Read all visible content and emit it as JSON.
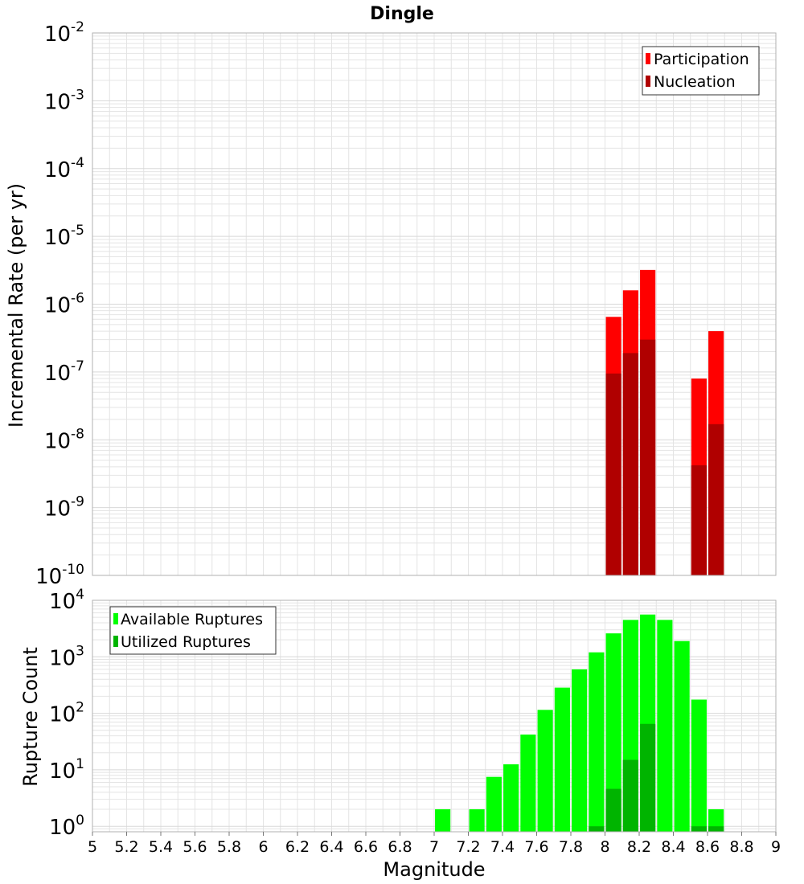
{
  "colors": {
    "participation": "#ff0000",
    "nucleation": "#b00000",
    "available": "#00ff00",
    "utilized": "#00b400",
    "grid": "#e4e4e4",
    "frame": "#b0b0b0"
  },
  "chart_data": [
    {
      "type": "bar",
      "title": "Dingle",
      "xlabel": "",
      "ylabel": "Incremental Rate (per yr)",
      "ylog": true,
      "ylim": [
        1e-10,
        0.01
      ],
      "xlim": [
        5,
        9
      ],
      "grid": true,
      "legend_position": "top-right",
      "ytick_exponents": [
        "-2",
        "-3",
        "-4",
        "-5",
        "-6",
        "-7",
        "-8",
        "-9",
        "-10"
      ],
      "ytick_base": "10",
      "series": [
        {
          "name": "Participation",
          "color": "#ff0000",
          "x": [
            8.05,
            8.15,
            8.25,
            8.55,
            8.65
          ],
          "values": [
            6.5e-07,
            1.6e-06,
            3.2e-06,
            8e-08,
            4e-07
          ]
        },
        {
          "name": "Nucleation",
          "color": "#b00000",
          "x": [
            8.05,
            8.15,
            8.25,
            8.55,
            8.65
          ],
          "values": [
            9.5e-08,
            1.9e-07,
            3e-07,
            4.2e-09,
            1.7e-08
          ]
        }
      ]
    },
    {
      "type": "bar",
      "xlabel": "Magnitude",
      "ylabel": "Rupture Count",
      "ylog": true,
      "ylim": [
        0.8,
        10000
      ],
      "xlim": [
        5,
        9
      ],
      "grid": true,
      "legend_position": "top-left",
      "ytick_exponents": [
        "4",
        "3",
        "2",
        "1",
        "0"
      ],
      "ytick_base": "10",
      "xticks": [
        "5",
        "5.2",
        "5.4",
        "5.6",
        "5.8",
        "6",
        "6.2",
        "6.4",
        "6.6",
        "6.8",
        "7",
        "7.2",
        "7.4",
        "7.6",
        "7.8",
        "8",
        "8.2",
        "8.4",
        "8.6",
        "8.8",
        "9"
      ],
      "series": [
        {
          "name": "Available Ruptures",
          "color": "#00ff00",
          "x": [
            7.05,
            7.25,
            7.35,
            7.45,
            7.55,
            7.65,
            7.75,
            7.85,
            7.95,
            8.05,
            8.15,
            8.25,
            8.35,
            8.45,
            8.55,
            8.65
          ],
          "values": [
            2,
            2,
            7.5,
            12.5,
            42,
            115,
            285,
            600,
            1200,
            2600,
            4500,
            5600,
            4500,
            1900,
            175,
            2
          ]
        },
        {
          "name": "Utilized Ruptures",
          "color": "#00b400",
          "x": [
            7.95,
            8.05,
            8.15,
            8.25,
            8.55,
            8.65
          ],
          "values": [
            1,
            4.6,
            15,
            65,
            1,
            1
          ]
        }
      ]
    }
  ]
}
